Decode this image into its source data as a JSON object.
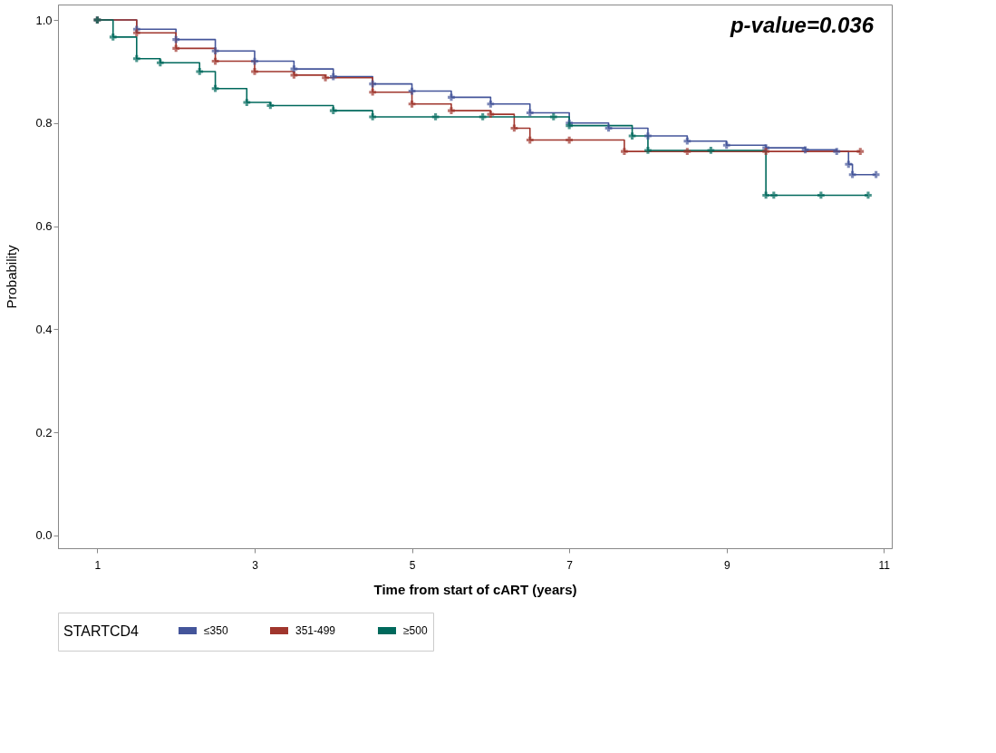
{
  "chart_data": {
    "type": "step",
    "xlabel": "Time from start of cART (years)",
    "ylabel": "Probability",
    "legend_title": "STARTCD4",
    "xlim": [
      0.5,
      11.1
    ],
    "ylim": [
      -0.025,
      1.03
    ],
    "xticks": [
      1,
      3,
      5,
      7,
      9,
      11
    ],
    "yticks": [
      {
        "value": 0,
        "label": "0.0"
      },
      {
        "value": 0.2,
        "label": "0.2"
      },
      {
        "value": 0.4,
        "label": "0.4"
      },
      {
        "value": 0.6,
        "label": "0.6"
      },
      {
        "value": 0.8,
        "label": "0.8"
      },
      {
        "value": 1,
        "label": "1.0"
      }
    ],
    "grid": false,
    "legend": "bottom",
    "marker": "cross",
    "line_style": "solid",
    "annotations": [
      "p-value=0.036"
    ],
    "series": [
      {
        "name": "≤350",
        "color": "#44559a",
        "x": [
          1,
          1.5,
          2,
          2.5,
          3,
          3.5,
          4,
          4.5,
          5,
          5.5,
          6,
          6.5,
          7,
          7.5,
          8,
          8.5,
          9,
          9.5,
          10,
          10.4,
          10.55,
          10.6,
          10.9
        ],
        "values": [
          1,
          0.982,
          0.962,
          0.94,
          0.92,
          0.905,
          0.89,
          0.876,
          0.862,
          0.85,
          0.837,
          0.82,
          0.8,
          0.79,
          0.775,
          0.765,
          0.757,
          0.752,
          0.748,
          0.745,
          0.72,
          0.7,
          0.7
        ]
      },
      {
        "name": "351-499",
        "color": "#a0362d",
        "x": [
          1,
          1.5,
          2,
          2.5,
          3,
          3.5,
          3.9,
          4.5,
          5,
          5.5,
          6,
          6.3,
          6.5,
          7,
          7.7,
          8.5,
          9.5,
          10.7
        ],
        "values": [
          1,
          0.975,
          0.945,
          0.92,
          0.9,
          0.893,
          0.888,
          0.86,
          0.837,
          0.824,
          0.817,
          0.79,
          0.767,
          0.767,
          0.745,
          0.745,
          0.745,
          0.745
        ]
      },
      {
        "name": "≥500",
        "color": "#00695c",
        "x": [
          1,
          1.2,
          1.5,
          1.8,
          2.3,
          2.5,
          2.9,
          3.2,
          4,
          4.5,
          5.3,
          5.9,
          6.8,
          7,
          7.8,
          8,
          8.8,
          9.5,
          9.6,
          10.2,
          10.8
        ],
        "values": [
          1,
          0.967,
          0.925,
          0.917,
          0.9,
          0.867,
          0.84,
          0.834,
          0.824,
          0.812,
          0.812,
          0.812,
          0.812,
          0.795,
          0.775,
          0.747,
          0.747,
          0.66,
          0.66,
          0.66,
          0.66
        ]
      }
    ]
  }
}
